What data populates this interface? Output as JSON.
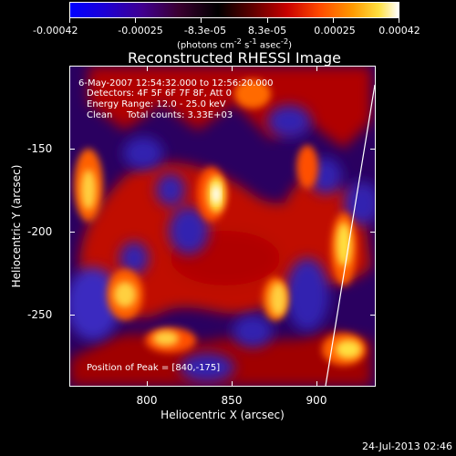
{
  "colorbar": {
    "tick_labels": [
      "-0.00042",
      "-0.00025",
      "-8.3e-05",
      "8.3e-05",
      "0.00025",
      "0.00042"
    ],
    "unit_prefix": "(photons cm",
    "unit_exp1": "-2",
    "unit_mid1": " s",
    "unit_exp2": "-1",
    "unit_mid2": " asec",
    "unit_exp3": "-2",
    "unit_suffix": ")"
  },
  "title": "Reconstructed RHESSI Image",
  "info": {
    "time_range": "6-May-2007 12:54:32.000 to 12:56:20.000",
    "detectors": "Detectors: 4F 5F 6F 7F 8F, Att 0",
    "energy": "Energy Range: 12.0 - 25.0 keV",
    "clean_label": "Clean",
    "total_counts": "Total counts: 3.33E+03",
    "peak": "Position of Peak = [840,-175]"
  },
  "axes": {
    "x_title": "Heliocentric X (arcsec)",
    "y_title": "Heliocentric Y (arcsec)",
    "x_tick_labels": [
      "800",
      "850",
      "900"
    ],
    "y_tick_labels": [
      "-150",
      "-200",
      "-250"
    ]
  },
  "timestamp": "24-Jul-2013 02:46",
  "colors": {
    "background": "#000000",
    "foreground": "#ffffff",
    "low": "#2a00a0",
    "mid": "#c80000",
    "high": "#ffe040",
    "peak": "#ffffff"
  }
}
